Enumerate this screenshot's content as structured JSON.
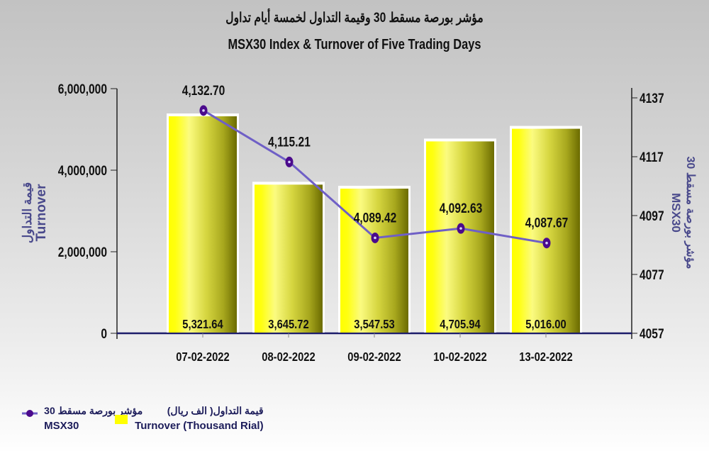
{
  "title": {
    "arabic": "مؤشر بورصة مسقط 30 وقيمة التداول لخمسة أيام تداول",
    "english": "MSX30 Index & Turnover of Five Trading Days"
  },
  "axes": {
    "left": {
      "title_ar": "قيمة التداول",
      "title_en": "Turnover",
      "ticks": [
        "6,000,000",
        "4,000,000",
        "2,000,000",
        "0"
      ]
    },
    "right": {
      "title_ar": "مؤشر بورصة مسقط 30",
      "title_en": "MSX30",
      "ticks": [
        "4137",
        "4117",
        "4097",
        "4077",
        "4057"
      ]
    }
  },
  "legend": {
    "line": {
      "label_ar": "مؤشر بورصة مسقط 30",
      "label_en": "MSX30"
    },
    "bar": {
      "label_ar": "قيمة التداول( الف ريال)",
      "label_en": "Turnover (Thousand Rial)"
    }
  },
  "colors": {
    "bar_yellow": "#ffff00",
    "bar_dark": "#6b6b00",
    "line": "#6f5fc6",
    "marker": "#4b0a8c",
    "axis_baseline": "#1c1c6a",
    "axis_title": "#4a4a8c"
  },
  "chart_data": {
    "type": "bar+line",
    "title": "MSX30 Index & Turnover of Five Trading Days",
    "title_ar": "مؤشر بورصة مسقط 30 وقيمة التداول لخمسة أيام تداول",
    "categories": [
      "07-02-2022",
      "08-02-2022",
      "09-02-2022",
      "10-02-2022",
      "13-02-2022"
    ],
    "series": [
      {
        "name": "Turnover (Thousand Rial)",
        "name_ar": "قيمة التداول( الف ريال)",
        "type": "bar",
        "axis": "left",
        "values": [
          5321.64,
          3645.72,
          3547.53,
          4705.94,
          5016.0
        ],
        "labels": [
          "5,321.64",
          "3,645.72",
          "3,547.53",
          "4,705.94",
          "5,016.00"
        ]
      },
      {
        "name": "MSX30",
        "name_ar": "مؤشر بورصة مسقط 30",
        "type": "line",
        "axis": "right",
        "values": [
          4132.7,
          4115.21,
          4089.42,
          4092.63,
          4087.67
        ],
        "labels": [
          "4,132.70",
          "4,115.21",
          "4,089.42",
          "4,092.63",
          "4,087.67"
        ]
      }
    ],
    "ylabel_left": "Turnover",
    "ylabel_right": "MSX30",
    "ylim_left": [
      0,
      6000000
    ],
    "ylim_right": [
      4057,
      4137
    ],
    "yticks_left": [
      0,
      2000000,
      4000000,
      6000000
    ],
    "yticks_right": [
      4057,
      4077,
      4097,
      4117,
      4137
    ],
    "grid": false,
    "legend_position": "bottom-left"
  }
}
